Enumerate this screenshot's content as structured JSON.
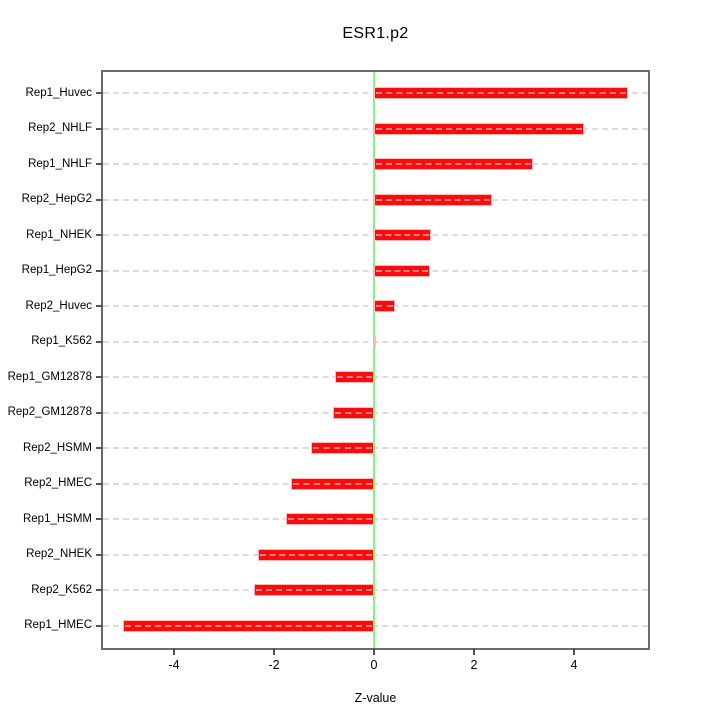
{
  "chart_data": {
    "type": "bar",
    "orientation": "horizontal",
    "title": "ESR1.p2",
    "xlabel": "Z-value",
    "ylabel": "",
    "categories": [
      "Rep1_Huvec",
      "Rep2_NHLF",
      "Rep1_NHLF",
      "Rep2_HepG2",
      "Rep1_NHEK",
      "Rep1_HepG2",
      "Rep2_Huvec",
      "Rep1_K562",
      "Rep1_GM12878",
      "Rep2_GM12878",
      "Rep2_HSMM",
      "Rep2_HMEC",
      "Rep1_HSMM",
      "Rep2_NHEK",
      "Rep2_K562",
      "Rep1_HMEC"
    ],
    "values": [
      5.08,
      4.2,
      3.17,
      2.35,
      1.14,
      1.11,
      0.42,
      0.04,
      -0.79,
      -0.83,
      -1.26,
      -1.66,
      -1.76,
      -2.33,
      -2.41,
      -5.03
    ],
    "xlim": [
      -5.42,
      5.48
    ],
    "x_ticks": [
      -4,
      -2,
      0,
      2,
      4
    ],
    "grid": true,
    "zero_line_x": 0,
    "legend": null,
    "colors": {
      "bar_fill": "#fa0c0c",
      "bar_border": "#ffb9b9",
      "zero_line": "#7df87d",
      "gridline": "#dcdcdc",
      "frame": "#6b6b6b",
      "text": "#000000",
      "background": "#ffffff"
    }
  }
}
